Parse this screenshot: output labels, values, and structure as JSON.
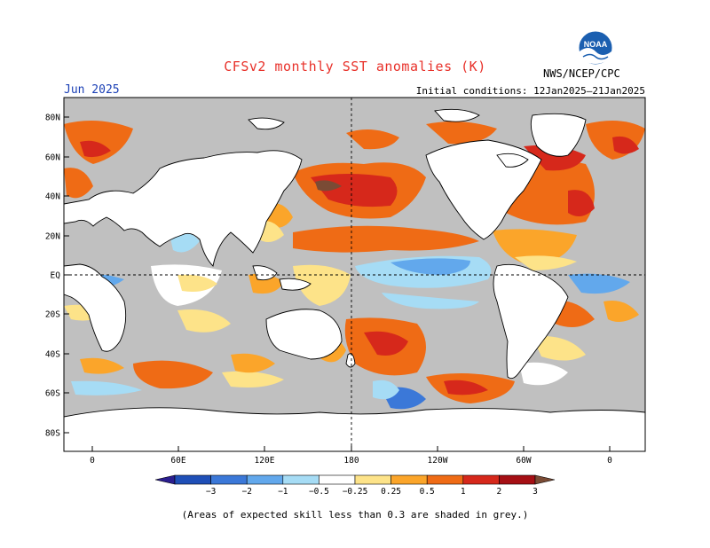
{
  "title": "CFSv2 monthly SST anomalies (K)",
  "month": "Jun 2025",
  "initial_conditions": "Initial conditions: 12Jan2025–21Jan2025",
  "agency": "NWS/NCEP/CPC",
  "logo_text": "NOAA",
  "lat_labels": [
    "80N",
    "60N",
    "40N",
    "20N",
    "EQ",
    "20S",
    "40S",
    "60S",
    "80S"
  ],
  "lon_labels": [
    "0",
    "60E",
    "120E",
    "180",
    "120W",
    "60W",
    "0"
  ],
  "colorbar": {
    "labels": [
      "−3",
      "−2",
      "−1",
      "−0.5",
      "−0.25",
      "0.25",
      "0.5",
      "1",
      "2",
      "3"
    ],
    "colors": [
      "#2b1e8f",
      "#1f4fb7",
      "#3b78d8",
      "#62a8ec",
      "#a6dcf5",
      "#ffffff",
      "#fde389",
      "#fba52a",
      "#ef6b15",
      "#d6281b",
      "#a50f14",
      "#7a4b35"
    ]
  },
  "note": "(Areas of expected skill less than 0.3 are shaded in grey.)"
}
